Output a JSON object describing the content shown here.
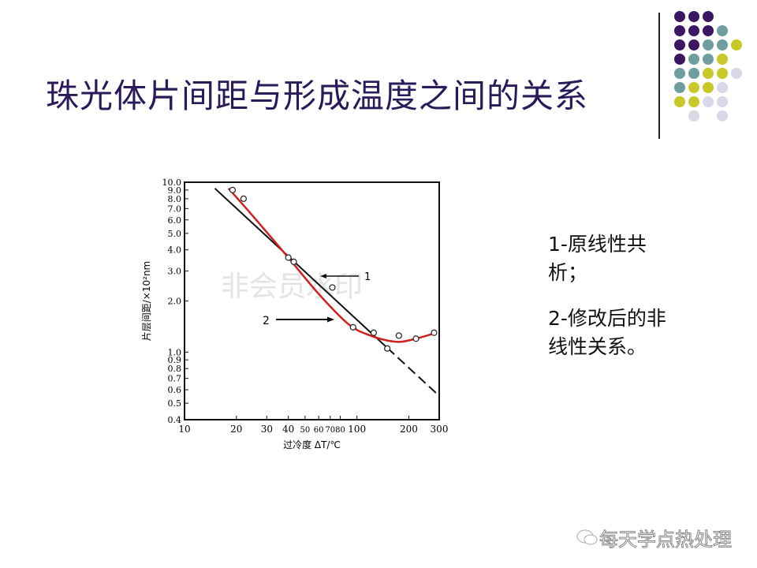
{
  "slide": {
    "title": "珠光体片间距与形成温度之间的关系",
    "notes": [
      "1-原线性共析；",
      "2-修改后的非线性关系。"
    ],
    "notes_lines": [
      [
        "1-原线性共",
        "析；"
      ],
      [
        "2-修改后的",
        "非线性关系。"
      ]
    ],
    "watermark_footer": "每天学点热处理",
    "chart_watermark": "非会员水印",
    "colors": {
      "title": "#2a1a5a",
      "purple": "#3b1663",
      "teal": "#6f9e9e",
      "yellow": "#c8c828",
      "lavender": "#d8d8e8",
      "curve1": "#d02020",
      "curve2": "#111111"
    },
    "dot_grid": [
      [
        "purple",
        "purple",
        "purple",
        "",
        ""
      ],
      [
        "purple",
        "purple",
        "purple",
        "teal",
        ""
      ],
      [
        "purple",
        "purple",
        "teal",
        "teal",
        "yellow"
      ],
      [
        "purple",
        "teal",
        "teal",
        "yellow",
        ""
      ],
      [
        "teal",
        "teal",
        "yellow",
        "yellow",
        "lavender"
      ],
      [
        "teal",
        "yellow",
        "yellow",
        "lavender",
        ""
      ],
      [
        "yellow",
        "yellow",
        "lavender",
        "lavender",
        ""
      ],
      [
        "",
        "lavender",
        "",
        "lavender",
        ""
      ]
    ]
  },
  "chart_data": {
    "type": "line",
    "xlabel": "过冷度 ΔT/℃",
    "ylabel": "片层间距/×10²nm",
    "x_scale": "log",
    "y_scale": "log",
    "xlim": [
      10,
      300
    ],
    "ylim": [
      0.4,
      10
    ],
    "x_ticks": [
      10,
      20,
      30,
      40,
      50,
      60,
      70,
      80,
      100,
      200,
      300
    ],
    "x_tick_labels": [
      "10",
      "20",
      "30",
      "40",
      "50",
      "60",
      "70",
      "80",
      "100",
      "200",
      "300"
    ],
    "y_ticks": [
      10,
      9,
      8,
      7,
      6,
      5,
      4,
      3,
      2,
      1,
      0.9,
      0.8,
      0.7,
      0.6,
      0.5,
      0.4
    ],
    "y_tick_labels": [
      "10.0",
      "9.0",
      "8.0",
      "7.0",
      "6.0",
      "5.0",
      "4.0",
      "3.0",
      "2.0",
      "1.0",
      "0.9",
      "0.8",
      "0.7",
      "0.6",
      "0.5",
      "0.4"
    ],
    "points": [
      [
        19,
        9.0
      ],
      [
        22,
        8.0
      ],
      [
        40,
        3.6
      ],
      [
        43,
        3.4
      ],
      [
        72,
        2.4
      ],
      [
        95,
        1.4
      ],
      [
        125,
        1.3
      ],
      [
        150,
        1.05
      ],
      [
        175,
        1.25
      ],
      [
        220,
        1.2
      ],
      [
        280,
        1.3
      ]
    ],
    "series": [
      {
        "name": "1",
        "style": "red curve",
        "x": [
          18,
          25,
          40,
          60,
          90,
          120,
          150,
          180,
          220,
          290
        ],
        "y": [
          9.2,
          6.3,
          3.6,
          2.2,
          1.45,
          1.25,
          1.17,
          1.15,
          1.2,
          1.3
        ]
      },
      {
        "name": "2",
        "style": "black straight, dashed beyond 150",
        "x": [
          15,
          290
        ],
        "y": [
          9.2,
          0.57
        ]
      }
    ],
    "annotations": [
      {
        "text": "1",
        "arrow": "left"
      },
      {
        "text": "2",
        "arrow": "right"
      }
    ],
    "grid": false
  }
}
